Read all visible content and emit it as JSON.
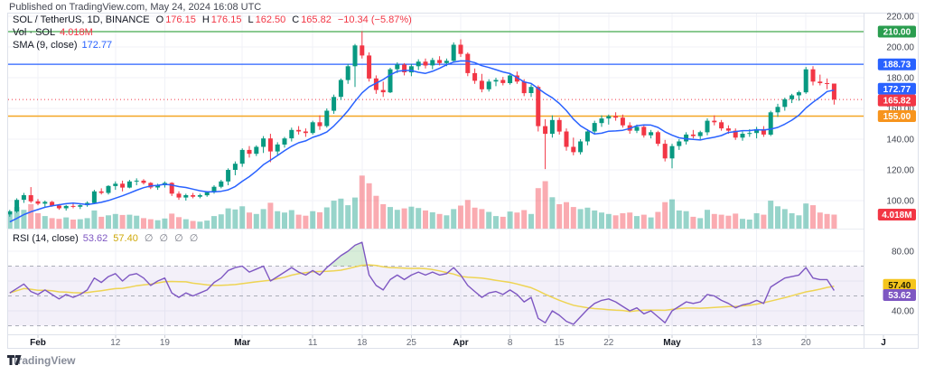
{
  "meta": {
    "published": "Published on TradingView.com, May 24, 2024 16:08 UTC",
    "brand": "TradingView"
  },
  "legend": {
    "symbol": "SOL / TetherUS, 1D, BINANCE",
    "ohlc": {
      "o_k": "O",
      "o": "176.15",
      "h_k": "H",
      "h": "176.15",
      "l_k": "L",
      "l": "162.50",
      "c_k": "C",
      "c": "165.82",
      "change": "−10.34 (−5.87%)"
    },
    "vol_label": "Vol · SOL",
    "vol_value": "4.018M",
    "sma_label": "SMA (9, close)",
    "sma_value": "172.77",
    "rsi_label": "RSI (14, close)",
    "rsi_value": "53.62",
    "rsi_ma_value": "57.40",
    "rsi_hidden": "∅ ∅ ∅ ∅"
  },
  "colors": {
    "up": "#089981",
    "down": "#f23645",
    "vol_up": "#089981",
    "vol_down": "#f23645",
    "sma": "#2962ff",
    "rsi_line": "#7e57c2",
    "rsi_ma": "#eed453",
    "rsi_band": "#7e57c2",
    "overbought_fill": "#4caf50",
    "line_green": "#63b76c",
    "line_blue": "#2962ff",
    "line_orange": "#f5a623",
    "line_red_dotted": "#f23645",
    "grid": "#f0f2f7",
    "frame": "#dde1ea",
    "axis_text": "#40444f",
    "month_text": "#131722",
    "day_text": "#656a76"
  },
  "chart_data": {
    "type": "candlestick+volume+line(sma9)+rsi",
    "symbol": "SOL/TetherUS",
    "exchange": "BINANCE",
    "interval": "1D",
    "start_date": "2024-01-28",
    "end_date": "2024-05-24",
    "price_axis_ticks": [
      220,
      200,
      180,
      160,
      140,
      120,
      100
    ],
    "rsi_axis_ticks": [
      80,
      40
    ],
    "rsi_grid": [
      80,
      60,
      40
    ],
    "rsi_levels": {
      "upper": 70,
      "middle": 50,
      "lower": 30
    },
    "time_ticks": [
      {
        "label": "Feb",
        "i": 4,
        "strong": true
      },
      {
        "label": "12",
        "i": 15
      },
      {
        "label": "19",
        "i": 22
      },
      {
        "label": "Mar",
        "i": 33,
        "strong": true
      },
      {
        "label": "11",
        "i": 43
      },
      {
        "label": "18",
        "i": 50
      },
      {
        "label": "25",
        "i": 57
      },
      {
        "label": "Apr",
        "i": 64,
        "strong": true
      },
      {
        "label": "8",
        "i": 71
      },
      {
        "label": "15",
        "i": 78
      },
      {
        "label": "22",
        "i": 85
      },
      {
        "label": "May",
        "i": 94,
        "strong": true
      },
      {
        "label": "13",
        "i": 106
      },
      {
        "label": "20",
        "i": 113
      },
      {
        "label": "J",
        "i": 124,
        "strong": true
      }
    ],
    "price_lines": [
      {
        "value": 210,
        "color": "#63b76c",
        "width": 1.5,
        "dash": null
      },
      {
        "value": 188.73,
        "color": "#2962ff",
        "width": 1.2,
        "dash": null
      },
      {
        "value": 165.82,
        "color": "#f23645",
        "width": 1,
        "dash": "1,3"
      },
      {
        "value": 155,
        "color": "#f5a623",
        "width": 1.5,
        "dash": null
      }
    ],
    "axis_badges": [
      {
        "label": "210.00",
        "bg": "#2a9d4f",
        "fg": "#ffffff",
        "pane": "price",
        "value": 210
      },
      {
        "label": "188.73",
        "bg": "#2962ff",
        "fg": "#ffffff",
        "pane": "price",
        "value": 188.73
      },
      {
        "label": "172.77",
        "bg": "#2962ff",
        "fg": "#ffffff",
        "pane": "price",
        "value": 172.77
      },
      {
        "label": "165.82",
        "bg": "#f23645",
        "fg": "#ffffff",
        "pane": "price",
        "value": 165.82,
        "nudge": 1
      },
      {
        "label": "155.00",
        "bg": "#f7941d",
        "fg": "#ffffff",
        "pane": "price",
        "value": 155
      },
      {
        "label": "4.018M",
        "bg": "#f23645",
        "fg": "#ffffff",
        "y": 237.5
      },
      {
        "label": "57.40",
        "bg": "#f5c51d",
        "fg": "#201d00",
        "pane": "rsi",
        "value": 57.4
      },
      {
        "label": "53.62",
        "bg": "#7e57c2",
        "fg": "#ffffff",
        "pane": "rsi",
        "value": 53.62,
        "nudge": 5
      }
    ],
    "sma": {
      "period": 9,
      "seed": [
        80,
        81,
        83,
        85,
        86,
        88,
        89,
        90
      ]
    },
    "rsi_ma_period": 14,
    "candles": [
      [
        91,
        94,
        89.5,
        93,
        5.0
      ],
      [
        93,
        101.5,
        92,
        100.5,
        6.2
      ],
      [
        100.5,
        105,
        98.5,
        103.5,
        5.4
      ],
      [
        103.5,
        108.8,
        98.5,
        99.5,
        7.0
      ],
      [
        99.5,
        101,
        97,
        98,
        4.4
      ],
      [
        98,
        100,
        95.5,
        99.2,
        3.6
      ],
      [
        99.2,
        99.8,
        96,
        96.8,
        3.0
      ],
      [
        96.8,
        97.8,
        94,
        95,
        2.8
      ],
      [
        95,
        97.2,
        93.5,
        96.5,
        3.2
      ],
      [
        96.5,
        98,
        95,
        96,
        2.6
      ],
      [
        96,
        97.5,
        94.5,
        97,
        2.7
      ],
      [
        97,
        99.5,
        96,
        98.5,
        3.0
      ],
      [
        98.5,
        107,
        98,
        106,
        5.2
      ],
      [
        106,
        108,
        104,
        105,
        3.4
      ],
      [
        105,
        110,
        104,
        109.5,
        3.8
      ],
      [
        109.5,
        112.5,
        107,
        111,
        4.2
      ],
      [
        111,
        113,
        106,
        108.5,
        3.9
      ],
      [
        108.5,
        113.5,
        108,
        112.5,
        4.0
      ],
      [
        112.5,
        114.5,
        110,
        113,
        3.7
      ],
      [
        113,
        114,
        110.5,
        111.5,
        3.0
      ],
      [
        111.5,
        112,
        107.5,
        108.5,
        2.7
      ],
      [
        108.5,
        111,
        107,
        110,
        2.4
      ],
      [
        110,
        112.5,
        108.5,
        111.5,
        2.9
      ],
      [
        111.5,
        112,
        103,
        104.5,
        4.3
      ],
      [
        104.5,
        106,
        100.5,
        102,
        3.3
      ],
      [
        102,
        104.5,
        100,
        103.5,
        2.7
      ],
      [
        103.5,
        105,
        101.5,
        102.5,
        2.2
      ],
      [
        102.5,
        104.5,
        101.5,
        103.5,
        2.0
      ],
      [
        103.5,
        106,
        102.5,
        105.5,
        2.3
      ],
      [
        105.5,
        110,
        104.5,
        109,
        3.6
      ],
      [
        109,
        113.5,
        108,
        112.5,
        4.1
      ],
      [
        112.5,
        121,
        110,
        120,
        5.8
      ],
      [
        120,
        125.5,
        116.5,
        124,
        5.5
      ],
      [
        124,
        134,
        122,
        133,
        6.4
      ],
      [
        133,
        135.5,
        128,
        130.5,
        4.6
      ],
      [
        130.5,
        136,
        129,
        135,
        4.2
      ],
      [
        135,
        142,
        131,
        140.5,
        5.6
      ],
      [
        140.5,
        143.5,
        125,
        132,
        7.4
      ],
      [
        132,
        138,
        129.5,
        136.5,
        5.0
      ],
      [
        136.5,
        141.5,
        134.5,
        140.5,
        4.6
      ],
      [
        140.5,
        147.5,
        138.5,
        146,
        5.3
      ],
      [
        146,
        148.5,
        143,
        145,
        4.0
      ],
      [
        145,
        147,
        141.5,
        144,
        3.7
      ],
      [
        144,
        152,
        143,
        151,
        5.0
      ],
      [
        151,
        155.5,
        146,
        148.5,
        4.7
      ],
      [
        148.5,
        160,
        147.5,
        158.5,
        6.1
      ],
      [
        158.5,
        169,
        156.5,
        167.5,
        8.0
      ],
      [
        167.5,
        179.5,
        165.5,
        178.5,
        8.6
      ],
      [
        178.5,
        189,
        176,
        187.5,
        6.7
      ],
      [
        187.5,
        202,
        174,
        201,
        8.9
      ],
      [
        201,
        210.3,
        192.5,
        194.5,
        15.2
      ],
      [
        194.5,
        196.5,
        177.5,
        179.5,
        13.0
      ],
      [
        179.5,
        181.5,
        169.5,
        172,
        9.4
      ],
      [
        172,
        177.5,
        167.5,
        170.5,
        7.0
      ],
      [
        170.5,
        186.5,
        170,
        185.5,
        6.2
      ],
      [
        185.5,
        190,
        183,
        188.5,
        5.4
      ],
      [
        188.5,
        189.5,
        181.5,
        183.5,
        5.8
      ],
      [
        183.5,
        189,
        181,
        187.5,
        6.3
      ],
      [
        187.5,
        192,
        185,
        190.5,
        5.9
      ],
      [
        190.5,
        192.5,
        186,
        188,
        5.2
      ],
      [
        188,
        193,
        185.5,
        191.5,
        4.7
      ],
      [
        191.5,
        194,
        188,
        189.5,
        4.2
      ],
      [
        189.5,
        192.5,
        187.5,
        191,
        3.8
      ],
      [
        191,
        203,
        190,
        201.5,
        5.6
      ],
      [
        201.5,
        205,
        193.5,
        195.5,
        6.6
      ],
      [
        195.5,
        196.5,
        181,
        183,
        8.2
      ],
      [
        183,
        186,
        176,
        178,
        6.0
      ],
      [
        178,
        182.5,
        170.5,
        172.5,
        5.6
      ],
      [
        172.5,
        179,
        171,
        177.5,
        4.8
      ],
      [
        177.5,
        180,
        174.5,
        178.5,
        3.6
      ],
      [
        178.5,
        180.5,
        175,
        176.5,
        3.4
      ],
      [
        176.5,
        183,
        175.5,
        181.5,
        4.9
      ],
      [
        181.5,
        184,
        176,
        177.5,
        4.6
      ],
      [
        177.5,
        179,
        168,
        170,
        5.3
      ],
      [
        170,
        175.5,
        167.5,
        174,
        4.2
      ],
      [
        174,
        175,
        145,
        148.5,
        11.6
      ],
      [
        148.5,
        153,
        120.5,
        143.5,
        13.6
      ],
      [
        143.5,
        155.5,
        141,
        152.5,
        9.0
      ],
      [
        152.5,
        154,
        143,
        145,
        7.0
      ],
      [
        145,
        147,
        132.5,
        135,
        7.6
      ],
      [
        135,
        141,
        129.5,
        131.5,
        6.2
      ],
      [
        131.5,
        140,
        130,
        138.5,
        5.6
      ],
      [
        138.5,
        146.5,
        136,
        145,
        6.0
      ],
      [
        145,
        152,
        143.5,
        150.5,
        5.2
      ],
      [
        150.5,
        155.5,
        148,
        153.5,
        4.6
      ],
      [
        153.5,
        156,
        149.5,
        155,
        4.2
      ],
      [
        155,
        157.5,
        152,
        154,
        3.8
      ],
      [
        154,
        156,
        147.5,
        149,
        4.4
      ],
      [
        149,
        151,
        143.5,
        145.5,
        4.6
      ],
      [
        145.5,
        149.5,
        144,
        148,
        3.6
      ],
      [
        148,
        149,
        141,
        142.5,
        4.0
      ],
      [
        142.5,
        146,
        140.5,
        144.5,
        3.2
      ],
      [
        144.5,
        145.5,
        135.5,
        137,
        4.8
      ],
      [
        137,
        139.5,
        125.5,
        127.5,
        7.6
      ],
      [
        127.5,
        137,
        121,
        135.5,
        8.4
      ],
      [
        135.5,
        140,
        133,
        138.5,
        5.2
      ],
      [
        138.5,
        144.5,
        136.5,
        143,
        5.0
      ],
      [
        143,
        146,
        140.5,
        142,
        3.4
      ],
      [
        142,
        145.5,
        140,
        144.5,
        3.0
      ],
      [
        144.5,
        153.5,
        142.5,
        152,
        5.4
      ],
      [
        152,
        155.5,
        149,
        151,
        4.2
      ],
      [
        151,
        152.5,
        145.5,
        147,
        4.0
      ],
      [
        147,
        149,
        143.5,
        145.5,
        3.7
      ],
      [
        145.5,
        147,
        139.5,
        141,
        4.3
      ],
      [
        141,
        145,
        139,
        143.5,
        2.8
      ],
      [
        143.5,
        146.5,
        141.5,
        144,
        2.6
      ],
      [
        144,
        148,
        140.5,
        146.5,
        4.4
      ],
      [
        146.5,
        148.5,
        141.5,
        143,
        4.0
      ],
      [
        143,
        158.5,
        142,
        157.5,
        8.0
      ],
      [
        157.5,
        163,
        154.5,
        161,
        6.4
      ],
      [
        161,
        167,
        158.5,
        166,
        5.6
      ],
      [
        166,
        169.5,
        163.5,
        168.5,
        4.4
      ],
      [
        168.5,
        171.5,
        165,
        170.5,
        3.8
      ],
      [
        170.5,
        187,
        169.5,
        185.5,
        7.2
      ],
      [
        185.5,
        187.5,
        175,
        177.5,
        6.7
      ],
      [
        177.5,
        182,
        175,
        176.5,
        4.6
      ],
      [
        176.5,
        179.5,
        172.5,
        176.2,
        4.2
      ],
      [
        176.15,
        176.15,
        162.5,
        165.82,
        4.018
      ]
    ],
    "rsi": [
      52,
      55,
      58,
      53,
      51,
      54,
      51,
      48,
      51,
      49,
      51,
      54,
      62,
      59,
      63,
      65,
      60,
      64,
      65,
      62,
      57,
      60,
      62,
      52,
      49,
      52,
      50,
      52,
      54,
      59,
      62,
      67,
      69,
      70,
      66,
      68,
      70,
      60,
      63,
      66,
      69,
      66,
      64,
      67,
      64,
      69,
      73,
      77,
      80,
      84,
      86,
      64,
      57,
      54,
      61,
      64,
      61,
      64,
      66,
      64,
      66,
      64,
      65,
      69,
      64,
      57,
      53,
      49,
      52,
      53,
      51,
      54,
      51,
      46,
      49,
      35,
      32,
      40,
      37,
      33,
      31,
      36,
      41,
      45,
      47,
      48,
      46,
      43,
      40,
      42,
      38,
      40,
      36,
      32,
      40,
      43,
      46,
      45,
      46,
      51,
      50,
      47,
      45,
      42,
      44,
      45,
      47,
      45,
      56,
      59,
      62,
      63,
      64,
      69,
      62,
      61,
      61,
      53.62
    ]
  }
}
